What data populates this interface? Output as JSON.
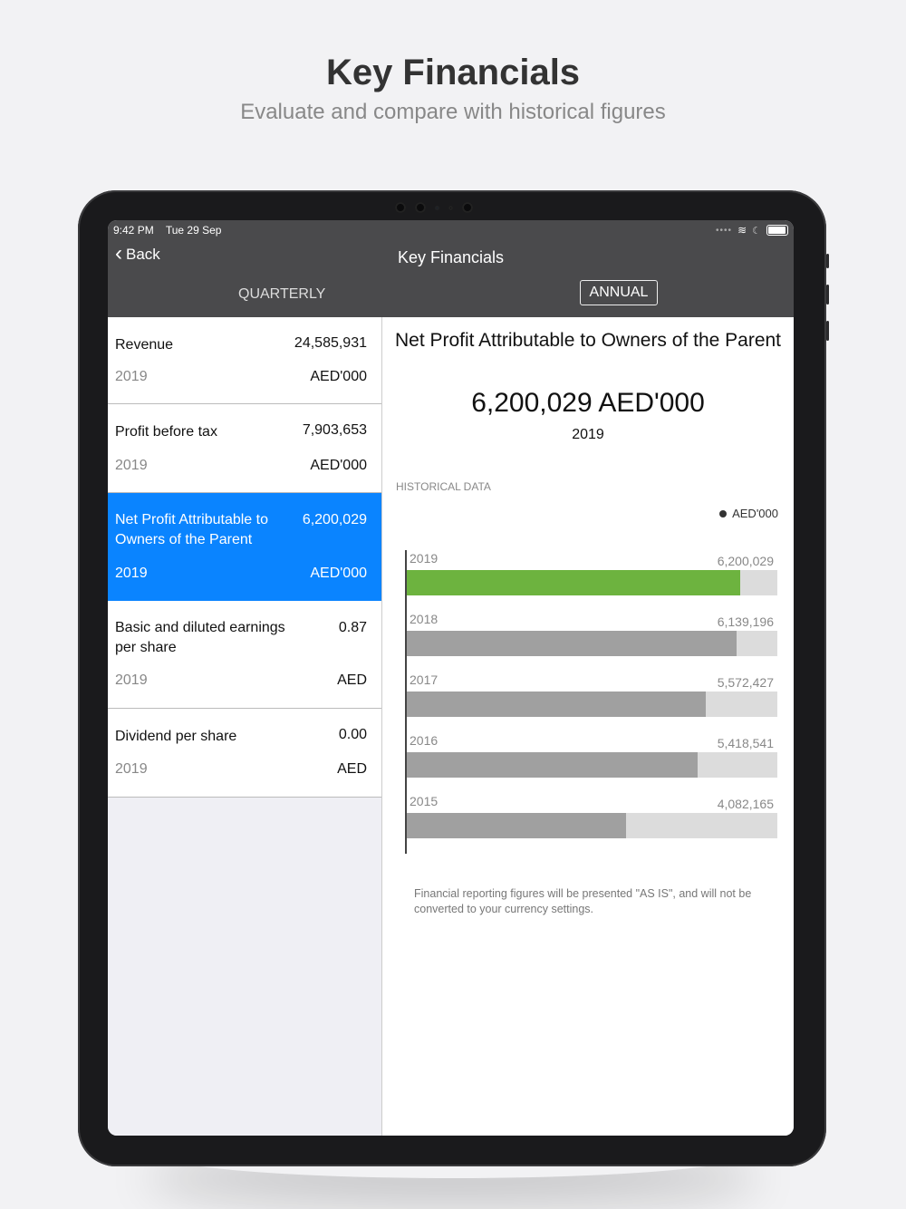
{
  "promo": {
    "title": "Key Financials",
    "subtitle": "Evaluate and compare with historical figures"
  },
  "status_bar": {
    "time": "9:42 PM",
    "date": "Tue 29 Sep"
  },
  "nav": {
    "back_label": "Back",
    "title": "Key Financials",
    "tabs": [
      {
        "label": "QUARTERLY",
        "selected": false
      },
      {
        "label": "ANNUAL",
        "selected": true
      }
    ]
  },
  "metrics": [
    {
      "name": "Revenue",
      "value": "24,585,931",
      "year": "2019",
      "unit": "AED'000",
      "selected": false
    },
    {
      "name": "Profit before tax",
      "value": "7,903,653",
      "year": "2019",
      "unit": "AED'000",
      "selected": false
    },
    {
      "name": "Net Profit Attributable to Owners of the Parent",
      "value": "6,200,029",
      "year": "2019",
      "unit": "AED'000",
      "selected": true
    },
    {
      "name": "Basic and diluted earnings per share",
      "value": "0.87",
      "year": "2019",
      "unit": "AED",
      "selected": false
    },
    {
      "name": "Dividend per share",
      "value": "0.00",
      "year": "2019",
      "unit": "AED",
      "selected": false
    }
  ],
  "detail": {
    "title": "Net Profit Attributable to Owners of the Parent",
    "value": "6,200,029 AED'000",
    "year": "2019",
    "historical_label": "HISTORICAL DATA",
    "legend": "AED'000",
    "footnote": "Financial reporting figures will be presented \"AS IS\", and will not be converted to your currency settings."
  },
  "chart_data": {
    "type": "bar",
    "orientation": "horizontal",
    "categories": [
      "2019",
      "2018",
      "2017",
      "2016",
      "2015"
    ],
    "values": [
      6200029,
      6139196,
      5572427,
      5418541,
      4082165
    ],
    "value_labels": [
      "6,200,029",
      "6,139,196",
      "5,572,427",
      "5,418,541",
      "4,082,165"
    ],
    "xlim": [
      0,
      6900000
    ],
    "legend": [
      "AED'000"
    ],
    "legend_position": "top-right",
    "grid": false,
    "colors": {
      "current": "#6db33f",
      "past": "#a0a0a0",
      "track": "#dcdcdc"
    }
  },
  "colors": {
    "accent": "#0a84ff",
    "nav_bar": "#4a4a4c"
  }
}
